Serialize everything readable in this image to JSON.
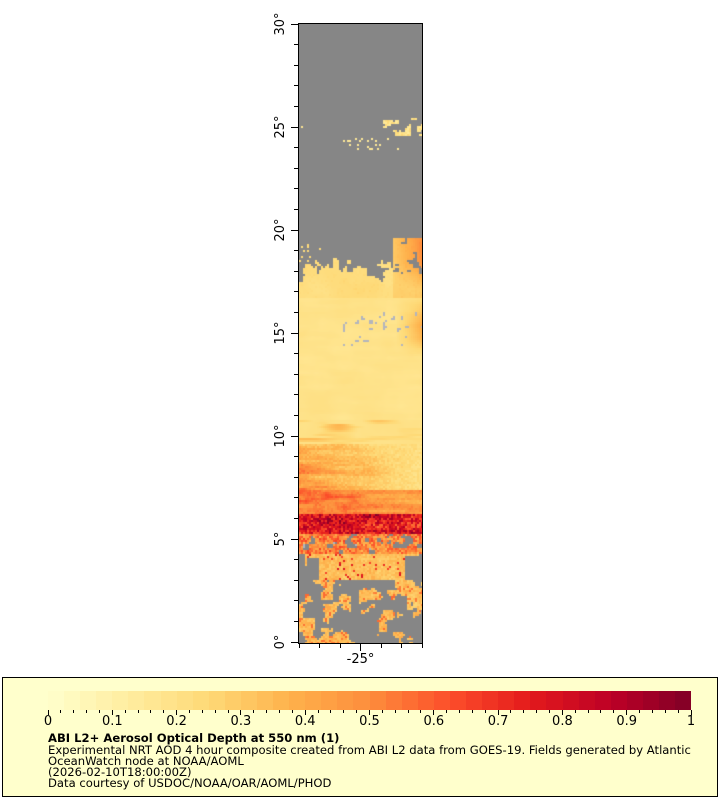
{
  "map": {
    "extent": {
      "lat_min": 0,
      "lat_max": 30,
      "lon_min": -28,
      "lon_max": -22
    },
    "y_axis": {
      "major_ticks": [
        {
          "lat": 0,
          "label": "0°"
        },
        {
          "lat": 5,
          "label": "5°"
        },
        {
          "lat": 10,
          "label": "10°"
        },
        {
          "lat": 15,
          "label": "15°"
        },
        {
          "lat": 20,
          "label": "20°"
        },
        {
          "lat": 25,
          "label": "25°"
        },
        {
          "lat": 30,
          "label": "30°"
        }
      ],
      "minor_step_deg": 1
    },
    "x_axis": {
      "major_ticks": [
        {
          "lon": -25,
          "label": "-25°"
        }
      ],
      "minor_step_deg": 1
    }
  },
  "colors": {
    "no_data": "#868686",
    "cloud": "#b3b5bd",
    "panel_background": "#ffffcc",
    "panel_border": "#000000",
    "page_background": "#ffffff",
    "text": "#000000"
  },
  "colorbar": {
    "min": 0,
    "max": 1,
    "tick_labels": [
      "0",
      "0.1",
      "0.2",
      "0.3",
      "0.4",
      "0.5",
      "0.6",
      "0.7",
      "0.8",
      "0.9",
      "1"
    ],
    "minor_step": 0.02,
    "segments": 40,
    "colormap_name": "YlOrRd",
    "colormap_stops": [
      [
        0.0,
        "#ffffcc"
      ],
      [
        0.125,
        "#ffeda0"
      ],
      [
        0.25,
        "#fed976"
      ],
      [
        0.375,
        "#feb24c"
      ],
      [
        0.5,
        "#fd8d3c"
      ],
      [
        0.625,
        "#fc4e2a"
      ],
      [
        0.75,
        "#e31a1c"
      ],
      [
        0.875,
        "#bd0026"
      ],
      [
        1.0,
        "#800026"
      ]
    ]
  },
  "caption": {
    "title": "ABI L2+ Aerosol Optical Depth at 550 nm (1)",
    "lines": [
      "Experimental NRT AOD 4 hour composite created from ABI L2 data from GOES-19. Fields generated by Atlantic",
      "OceanWatch node at NOAA/AOML",
      "(2026-02-10T18:00:00Z)",
      "Data courtesy of USDOC/NOAA/OAR/AOML/PHOD"
    ]
  },
  "chart_data": {
    "type": "heatmap",
    "title": "ABI L2+ Aerosol Optical Depth at 550 nm (1)",
    "variable": "Aerosol Optical Depth at 550 nm",
    "lat_range": [
      0,
      30
    ],
    "lon_range": [
      -28,
      -22
    ],
    "value_range": [
      0,
      1
    ],
    "colormap": "YlOrRd",
    "x_tick_labels": [
      "-25°"
    ],
    "y_tick_labels": [
      "0°",
      "5°",
      "10°",
      "15°",
      "20°",
      "25°",
      "30°"
    ],
    "bands": [
      {
        "lat_min": 19.6,
        "lat_max": 30,
        "kind": "nodata",
        "aod": null
      },
      {
        "lat_min": 16.7,
        "lat_max": 19.6,
        "kind": "transition",
        "aod": 0.2
      },
      {
        "lat_min": 10.8,
        "lat_max": 16.7,
        "kind": "smooth",
        "aod": 0.19
      },
      {
        "lat_min": 9.6,
        "lat_max": 10.8,
        "kind": "wisps",
        "aod": 0.22
      },
      {
        "lat_min": 7.4,
        "lat_max": 9.6,
        "kind": "west_plume",
        "aod": 0.5
      },
      {
        "lat_min": 6.3,
        "lat_max": 7.4,
        "kind": "streaky",
        "aod": 0.45
      },
      {
        "lat_min": 5.25,
        "lat_max": 6.3,
        "kind": "peak",
        "aod": 0.8
      },
      {
        "lat_min": 4.35,
        "lat_max": 5.25,
        "kind": "broken",
        "aod": 0.45
      },
      {
        "lat_min": 3.1,
        "lat_max": 4.35,
        "kind": "south_field",
        "aod": 0.3
      },
      {
        "lat_min": 0,
        "lat_max": 3.1,
        "kind": "patchy",
        "aod": 0.25
      }
    ],
    "features": [
      {
        "name": "coastal-patch-25N",
        "lat": [
          24.55,
          25.45
        ],
        "lon_frac": [
          0.66,
          1.0
        ],
        "aod": 0.15
      },
      {
        "name": "specks-24N",
        "lat": [
          23.85,
          24.45
        ],
        "lon_frac": [
          0.3,
          0.8
        ],
        "aod": 0.15
      },
      {
        "name": "speck-25N-west",
        "lat": [
          24.9,
          25.2
        ],
        "lon_frac": [
          0.0,
          0.05
        ],
        "aod": 0.16
      },
      {
        "name": "right-edge-patch-19N",
        "lat": [
          18.0,
          19.6
        ],
        "lon_frac": [
          0.76,
          1.0
        ],
        "aod": 0.4
      },
      {
        "name": "left-specks-19N",
        "lat": [
          18.2,
          19.3
        ],
        "lon_frac": [
          0.0,
          0.2
        ],
        "aod": 0.3
      },
      {
        "name": "cloud-blobs-15N",
        "lat": [
          14.3,
          16.05
        ],
        "lon_frac": [
          0.32,
          1.0
        ],
        "type": "cloud"
      }
    ]
  }
}
